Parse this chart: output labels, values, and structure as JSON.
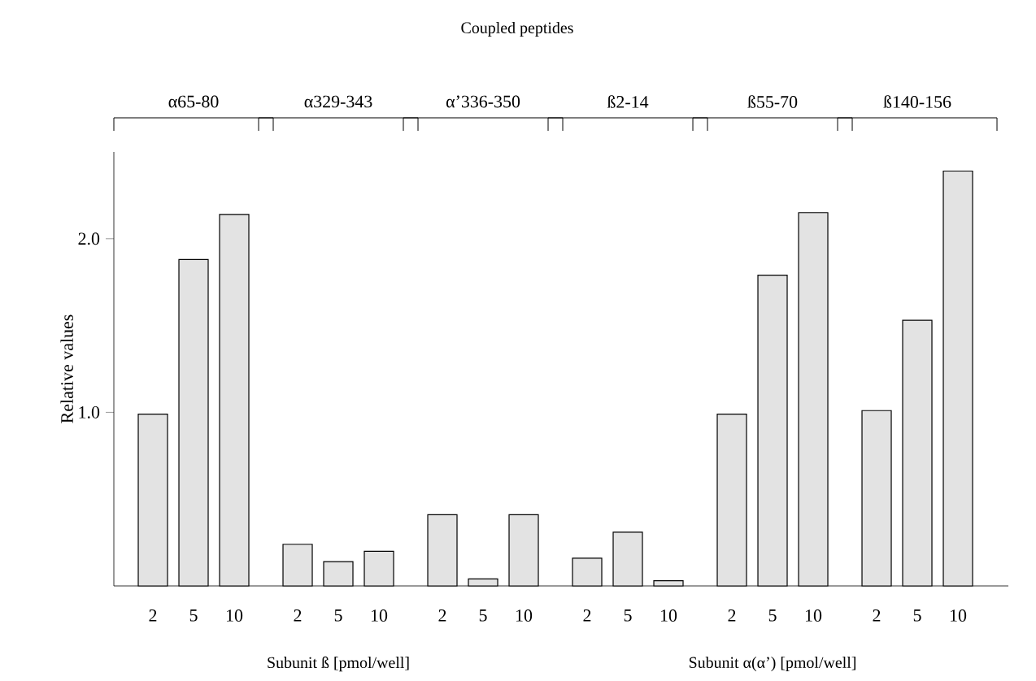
{
  "chart_data": {
    "type": "bar",
    "title": "Coupled peptides",
    "ylabel": "Relative values",
    "categories": [
      "2",
      "5",
      "10",
      "2",
      "5",
      "10",
      "2",
      "5",
      "10",
      "2",
      "5",
      "10",
      "2",
      "5",
      "10",
      "2",
      "5",
      "10"
    ],
    "values": [
      0.99,
      1.88,
      2.14,
      0.24,
      0.14,
      0.2,
      0.41,
      0.04,
      0.41,
      0.16,
      0.31,
      0.03,
      0.99,
      1.79,
      2.15,
      1.01,
      1.53,
      2.39
    ],
    "color": "#e3e3e3",
    "ylim": [
      0,
      2.5
    ],
    "yticks": [
      {
        "value": 1,
        "label": "1.0"
      },
      {
        "value": 2,
        "label": "2.0"
      }
    ],
    "annotations": [
      "α65-80",
      "α329-343",
      "α’336-350",
      "ß2-14",
      "ß55-70",
      "ß140-156",
      "Subunit ß [pmol/well]",
      "Subunit α(α’) [pmol/well]"
    ]
  }
}
